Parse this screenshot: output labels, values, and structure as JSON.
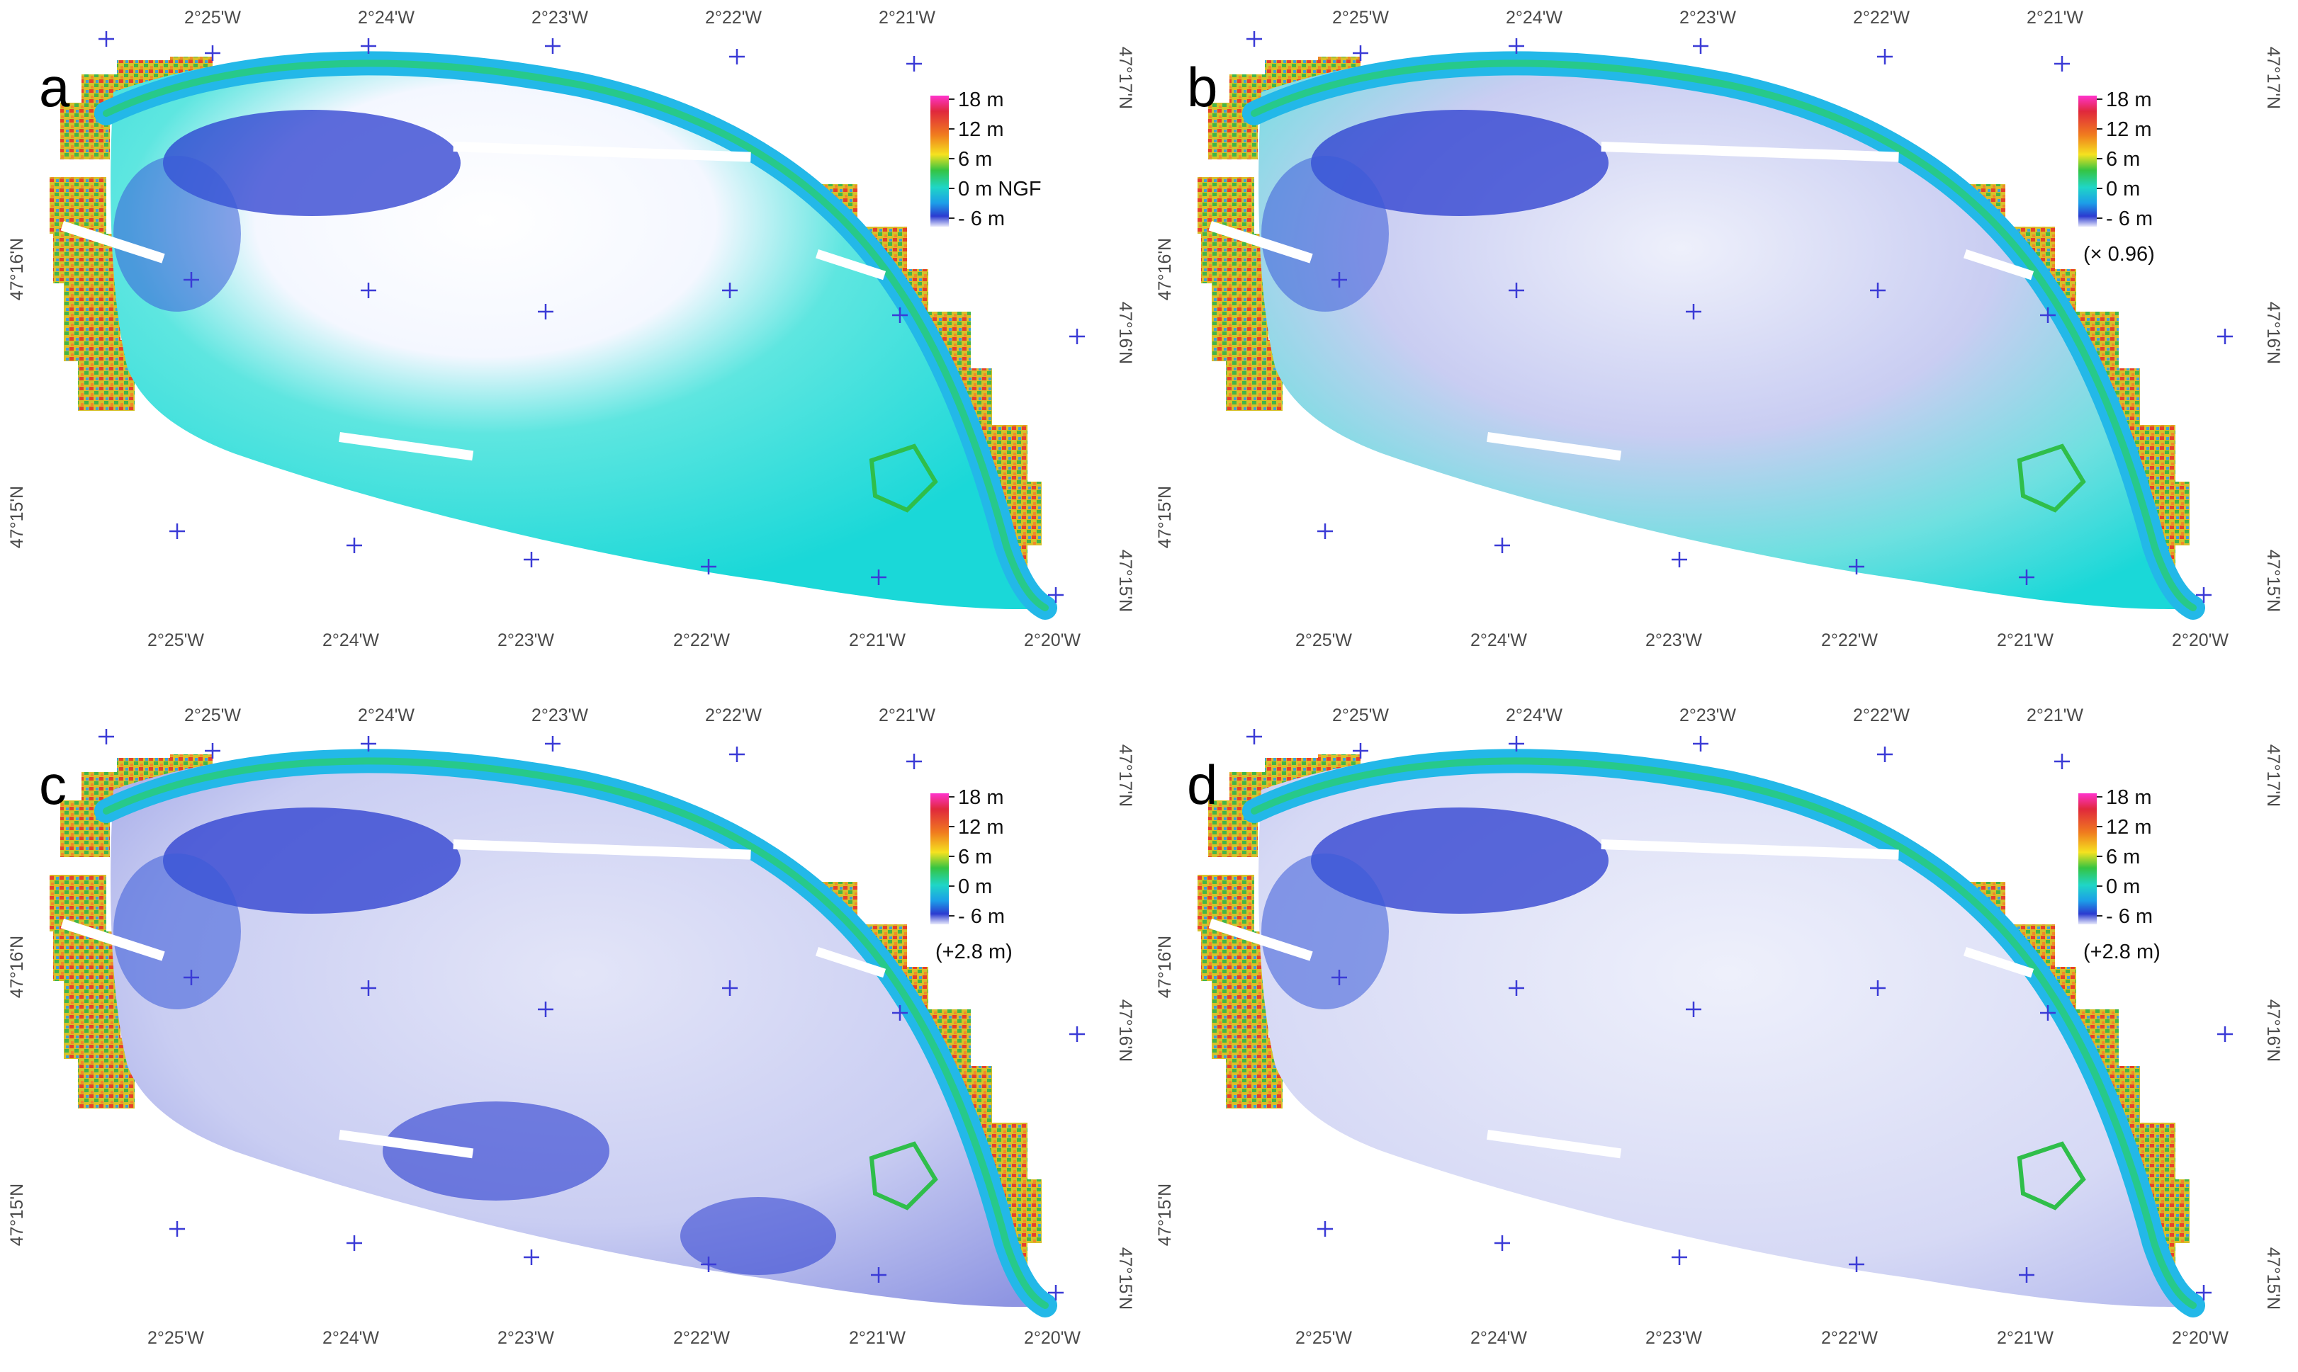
{
  "figure": {
    "colors": {
      "land_red": "#e8402a",
      "land_yellow": "#e6d52a",
      "land_green": "#43b649",
      "beach_green": "#2fc58a",
      "shallow_cyan": "#1ad8d8",
      "deep_blue": "#2a3ccf",
      "pale_lavender": "#c9cdf2",
      "grid_cross": "#3b3bd6"
    },
    "icons": [
      "grid-cross-icon",
      "color-scale-bar"
    ],
    "panels": [
      {
        "letter": "a",
        "legend": {
          "labels": [
            "18 m",
            "12 m",
            "6 m",
            "0 m NGF",
            "- 6 m"
          ],
          "note": ""
        },
        "surface": "mostly-cyan",
        "top_lon": [
          "2°25'W",
          "2°24'W",
          "2°23'W",
          "2°22'W",
          "2°21'W"
        ],
        "bottom_lon": [
          "2°25'W",
          "2°24'W",
          "2°23'W",
          "2°22'W",
          "2°21'W",
          "2°20'W"
        ],
        "left_lat": [
          "47°16'N",
          "47°15'N"
        ],
        "right_lat": [
          "47°17'N",
          "47°16'N",
          "47°15'N"
        ]
      },
      {
        "letter": "b",
        "legend": {
          "labels": [
            "18 m",
            "12 m",
            "6 m",
            "0 m",
            "- 6 m"
          ],
          "note": "(× 0.96)"
        },
        "surface": "mixed",
        "top_lon": [
          "2°25'W",
          "2°24'W",
          "2°23'W",
          "2°22'W",
          "2°21'W"
        ],
        "bottom_lon": [
          "2°25'W",
          "2°24'W",
          "2°23'W",
          "2°22'W",
          "2°21'W",
          "2°20'W"
        ],
        "left_lat": [
          "47°16'N",
          "47°15'N"
        ],
        "right_lat": [
          "47°17'N",
          "47°16'N",
          "47°15'N"
        ]
      },
      {
        "letter": "c",
        "legend": {
          "labels": [
            "18 m",
            "12 m",
            "6 m",
            "0 m",
            "- 6 m"
          ],
          "note": "(+2.8 m)"
        },
        "surface": "lavender-dark",
        "top_lon": [
          "2°25'W",
          "2°24'W",
          "2°23'W",
          "2°22'W",
          "2°21'W"
        ],
        "bottom_lon": [
          "2°25'W",
          "2°24'W",
          "2°23'W",
          "2°22'W",
          "2°21'W",
          "2°20'W"
        ],
        "left_lat": [
          "47°16'N",
          "47°15'N"
        ],
        "right_lat": [
          "47°17'N",
          "47°16'N",
          "47°15'N"
        ]
      },
      {
        "letter": "d",
        "legend": {
          "labels": [
            "18 m",
            "12 m",
            "6 m",
            "0 m",
            "- 6 m"
          ],
          "note": "(+2.8 m)"
        },
        "surface": "lavender-light",
        "top_lon": [
          "2°25'W",
          "2°24'W",
          "2°23'W",
          "2°22'W",
          "2°21'W"
        ],
        "bottom_lon": [
          "2°25'W",
          "2°24'W",
          "2°23'W",
          "2°22'W",
          "2°21'W",
          "2°20'W"
        ],
        "left_lat": [
          "47°16'N",
          "47°15'N"
        ],
        "right_lat": [
          "47°17'N",
          "47°16'N",
          "47°15'N"
        ]
      }
    ]
  }
}
